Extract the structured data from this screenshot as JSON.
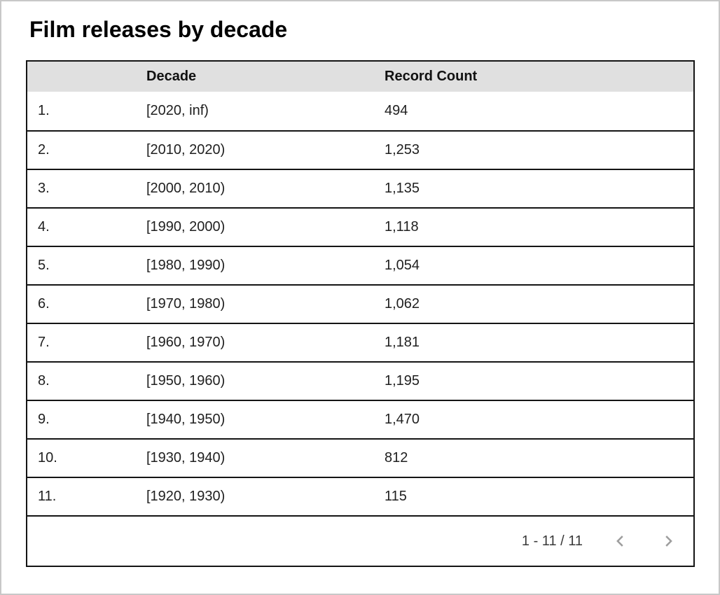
{
  "page": {
    "title": "Film releases by decade"
  },
  "table": {
    "columns": {
      "index": "",
      "decade": "Decade",
      "record_count": "Record Count"
    },
    "rows": [
      {
        "index": "1.",
        "decade": "[2020, inf)",
        "record_count": "494"
      },
      {
        "index": "2.",
        "decade": "[2010, 2020)",
        "record_count": "1,253"
      },
      {
        "index": "3.",
        "decade": "[2000, 2010)",
        "record_count": "1,135"
      },
      {
        "index": "4.",
        "decade": "[1990, 2000)",
        "record_count": "1,118"
      },
      {
        "index": "5.",
        "decade": "[1980, 1990)",
        "record_count": "1,054"
      },
      {
        "index": "6.",
        "decade": "[1970, 1980)",
        "record_count": "1,062"
      },
      {
        "index": "7.",
        "decade": "[1960, 1970)",
        "record_count": "1,181"
      },
      {
        "index": "8.",
        "decade": "[1950, 1960)",
        "record_count": "1,195"
      },
      {
        "index": "9.",
        "decade": "[1940, 1950)",
        "record_count": "1,470"
      },
      {
        "index": "10.",
        "decade": "[1930, 1940)",
        "record_count": "812"
      },
      {
        "index": "11.",
        "decade": "[1920, 1930)",
        "record_count": "115"
      }
    ]
  },
  "pagination": {
    "range_label": "1 - 11 / 11",
    "prev_icon": "chevron-left-icon",
    "next_icon": "chevron-right-icon"
  },
  "colors": {
    "header_bg": "#e0e0e0",
    "table_border": "#141414",
    "chevron": "#9e9e9e",
    "title_text": "#000000",
    "cell_text": "#1f1f1f",
    "frame_border": "#c8c8c8"
  },
  "chart_data": {
    "type": "table",
    "title": "Film releases by decade",
    "columns": [
      "Decade",
      "Record Count"
    ],
    "rows": [
      [
        "[2020, inf)",
        494
      ],
      [
        "[2010, 2020)",
        1253
      ],
      [
        "[2000, 2010)",
        1135
      ],
      [
        "[1990, 2000)",
        1118
      ],
      [
        "[1980, 1990)",
        1054
      ],
      [
        "[1970, 1980)",
        1062
      ],
      [
        "[1960, 1970)",
        1181
      ],
      [
        "[1950, 1960)",
        1195
      ],
      [
        "[1940, 1950)",
        1470
      ],
      [
        "[1930, 1940)",
        812
      ],
      [
        "[1920, 1930)",
        115
      ]
    ],
    "pagination": "1 - 11 / 11"
  }
}
